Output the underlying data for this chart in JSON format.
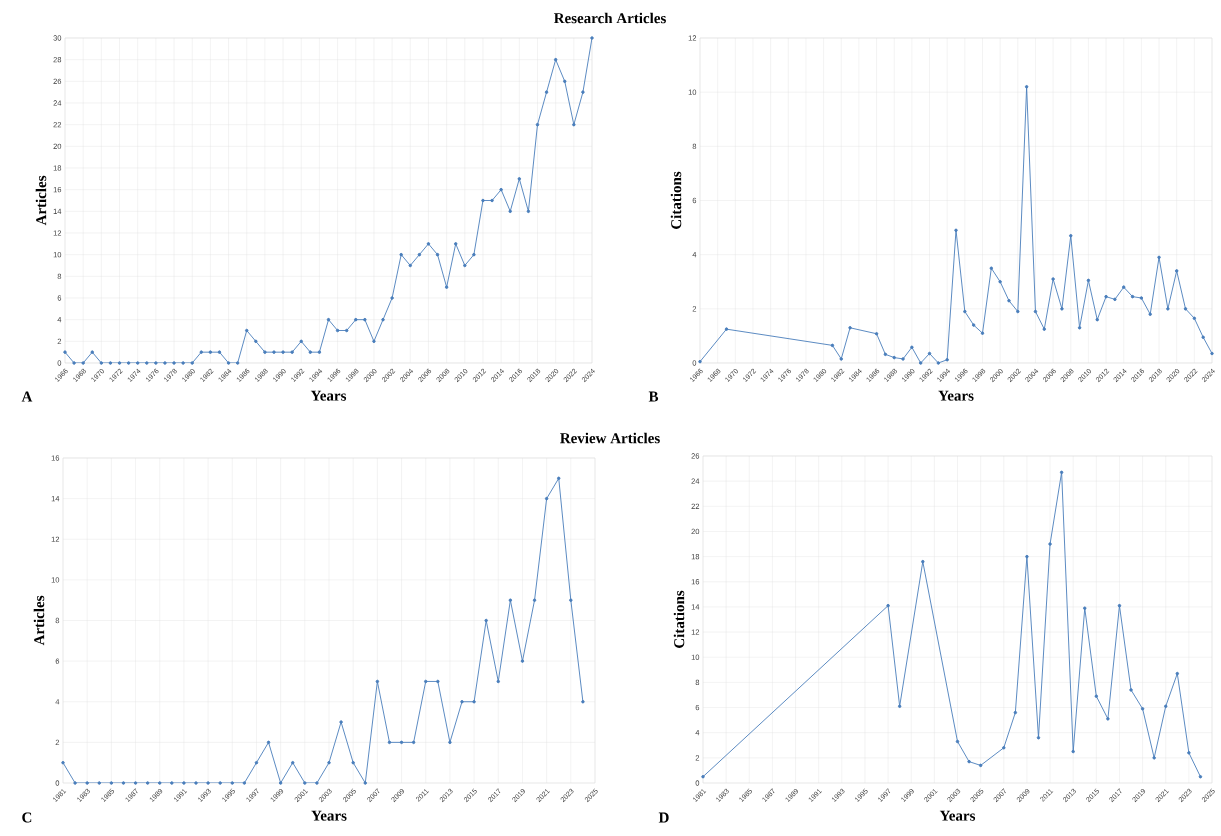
{
  "chart_data": [
    {
      "type": "line",
      "title": "Research Articles",
      "xlabel": "Years",
      "ylabel": "Articles",
      "color": "#4a7ebb",
      "marker": "circle",
      "grid": true,
      "x": [
        1966,
        1967,
        1968,
        1969,
        1970,
        1971,
        1972,
        1973,
        1974,
        1975,
        1976,
        1977,
        1978,
        1979,
        1980,
        1981,
        1982,
        1983,
        1984,
        1985,
        1986,
        1987,
        1988,
        1989,
        1990,
        1991,
        1992,
        1993,
        1994,
        1995,
        1996,
        1997,
        1998,
        1999,
        2000,
        2001,
        2002,
        2003,
        2004,
        2005,
        2006,
        2007,
        2008,
        2009,
        2010,
        2011,
        2012,
        2013,
        2014,
        2015,
        2016,
        2017,
        2018,
        2019,
        2020,
        2021,
        2022,
        2023,
        2024
      ],
      "values": [
        1,
        0,
        0,
        1,
        0,
        0,
        0,
        0,
        0,
        0,
        0,
        0,
        0,
        0,
        0,
        1,
        1,
        1,
        0,
        0,
        3,
        2,
        1,
        1,
        1,
        1,
        2,
        1,
        1,
        4,
        3,
        3,
        4,
        4,
        2,
        4,
        6,
        10,
        9,
        10,
        11,
        10,
        7,
        11,
        9,
        10,
        15,
        15,
        16,
        14,
        17,
        14,
        22,
        25,
        28,
        26,
        22,
        25,
        30
      ],
      "xlim": [
        1966,
        2024
      ],
      "xticks": [
        1966,
        1968,
        1970,
        1972,
        1974,
        1976,
        1978,
        1980,
        1982,
        1984,
        1986,
        1988,
        1990,
        1992,
        1994,
        1996,
        1998,
        2000,
        2002,
        2004,
        2006,
        2008,
        2010,
        2012,
        2014,
        2016,
        2018,
        2020,
        2022,
        2024
      ],
      "ylim": [
        0,
        30
      ],
      "yticks": [
        0,
        2,
        4,
        6,
        8,
        10,
        12,
        14,
        16,
        18,
        20,
        22,
        24,
        26,
        28,
        30
      ],
      "annotations": [
        "A"
      ]
    },
    {
      "type": "line",
      "xlabel": "Years",
      "ylabel": "Citations",
      "color": "#4a7ebb",
      "marker": "circle",
      "grid": true,
      "x": [
        1966,
        1969,
        1981,
        1982,
        1983,
        1986,
        1987,
        1988,
        1989,
        1990,
        1991,
        1992,
        1993,
        1994,
        1995,
        1996,
        1997,
        1998,
        1999,
        2000,
        2001,
        2002,
        2003,
        2004,
        2005,
        2006,
        2007,
        2008,
        2009,
        2010,
        2011,
        2012,
        2013,
        2014,
        2015,
        2016,
        2017,
        2018,
        2019,
        2020,
        2021,
        2022,
        2023,
        2024
      ],
      "values": [
        0.05,
        1.25,
        0.65,
        0.15,
        1.3,
        1.08,
        0.32,
        0.2,
        0.15,
        0.58,
        0,
        0.35,
        0,
        0.12,
        4.9,
        1.9,
        1.4,
        1.1,
        3.5,
        3.0,
        2.3,
        1.9,
        10.2,
        1.9,
        1.25,
        3.1,
        2.0,
        4.7,
        1.3,
        3.05,
        1.6,
        2.45,
        2.35,
        2.8,
        2.45,
        2.4,
        1.8,
        3.9,
        2.0,
        3.4,
        2.0,
        1.65,
        0.95,
        0.35
      ],
      "xlim": [
        1966,
        2024
      ],
      "xticks": [
        1966,
        1968,
        1970,
        1972,
        1974,
        1976,
        1978,
        1980,
        1982,
        1984,
        1986,
        1988,
        1990,
        1992,
        1994,
        1996,
        1998,
        2000,
        2002,
        2004,
        2006,
        2008,
        2010,
        2012,
        2014,
        2016,
        2018,
        2020,
        2022,
        2024
      ],
      "ylim": [
        0,
        12
      ],
      "yticks": [
        0,
        2,
        4,
        6,
        8,
        10,
        12
      ],
      "annotations": [
        "B"
      ]
    },
    {
      "type": "line",
      "title": "Review Articles",
      "xlabel": "Years",
      "ylabel": "Articles",
      "color": "#4a7ebb",
      "marker": "circle",
      "grid": true,
      "x": [
        1981,
        1982,
        1983,
        1984,
        1985,
        1986,
        1987,
        1988,
        1989,
        1990,
        1991,
        1992,
        1993,
        1994,
        1995,
        1996,
        1997,
        1998,
        1999,
        2000,
        2001,
        2002,
        2003,
        2004,
        2005,
        2006,
        2007,
        2008,
        2009,
        2010,
        2011,
        2012,
        2013,
        2014,
        2015,
        2016,
        2017,
        2018,
        2019,
        2020,
        2021,
        2022,
        2023,
        2024
      ],
      "values": [
        1,
        0,
        0,
        0,
        0,
        0,
        0,
        0,
        0,
        0,
        0,
        0,
        0,
        0,
        0,
        0,
        1,
        2,
        0,
        1,
        0,
        0,
        1,
        3,
        1,
        0,
        5,
        2,
        2,
        2,
        5,
        5,
        2,
        4,
        4,
        8,
        5,
        9,
        6,
        9,
        14,
        15,
        9,
        4
      ],
      "xlim": [
        1981,
        2025
      ],
      "xticks": [
        1981,
        1983,
        1985,
        1987,
        1989,
        1991,
        1993,
        1995,
        1997,
        1999,
        2001,
        2003,
        2005,
        2007,
        2009,
        2011,
        2013,
        2015,
        2017,
        2019,
        2021,
        2023,
        2025
      ],
      "ylim": [
        0,
        16
      ],
      "yticks": [
        0,
        2,
        4,
        6,
        8,
        10,
        12,
        14,
        16
      ],
      "annotations": [
        "C"
      ]
    },
    {
      "type": "line",
      "xlabel": "Years",
      "ylabel": "Citations",
      "color": "#4a7ebb",
      "marker": "circle",
      "grid": true,
      "x": [
        1981,
        1997,
        1998,
        2000,
        2003,
        2004,
        2005,
        2007,
        2008,
        2009,
        2010,
        2011,
        2012,
        2013,
        2014,
        2015,
        2016,
        2017,
        2018,
        2019,
        2020,
        2021,
        2022,
        2023,
        2024
      ],
      "values": [
        0.5,
        14.1,
        6.1,
        17.6,
        3.3,
        1.7,
        1.4,
        2.8,
        5.6,
        18.0,
        3.6,
        19.0,
        24.7,
        2.5,
        13.9,
        6.9,
        5.1,
        14.1,
        7.4,
        5.9,
        2.0,
        6.1,
        8.7,
        2.4,
        0.5
      ],
      "xlim": [
        1981,
        2025
      ],
      "xticks": [
        1981,
        1983,
        1985,
        1987,
        1989,
        1991,
        1993,
        1995,
        1997,
        1999,
        2001,
        2003,
        2005,
        2007,
        2009,
        2011,
        2013,
        2015,
        2017,
        2019,
        2021,
        2023,
        2025
      ],
      "ylim": [
        0,
        26
      ],
      "yticks": [
        0,
        2,
        4,
        6,
        8,
        10,
        12,
        14,
        16,
        18,
        20,
        22,
        24,
        26
      ],
      "annotations": [
        "D"
      ]
    }
  ]
}
